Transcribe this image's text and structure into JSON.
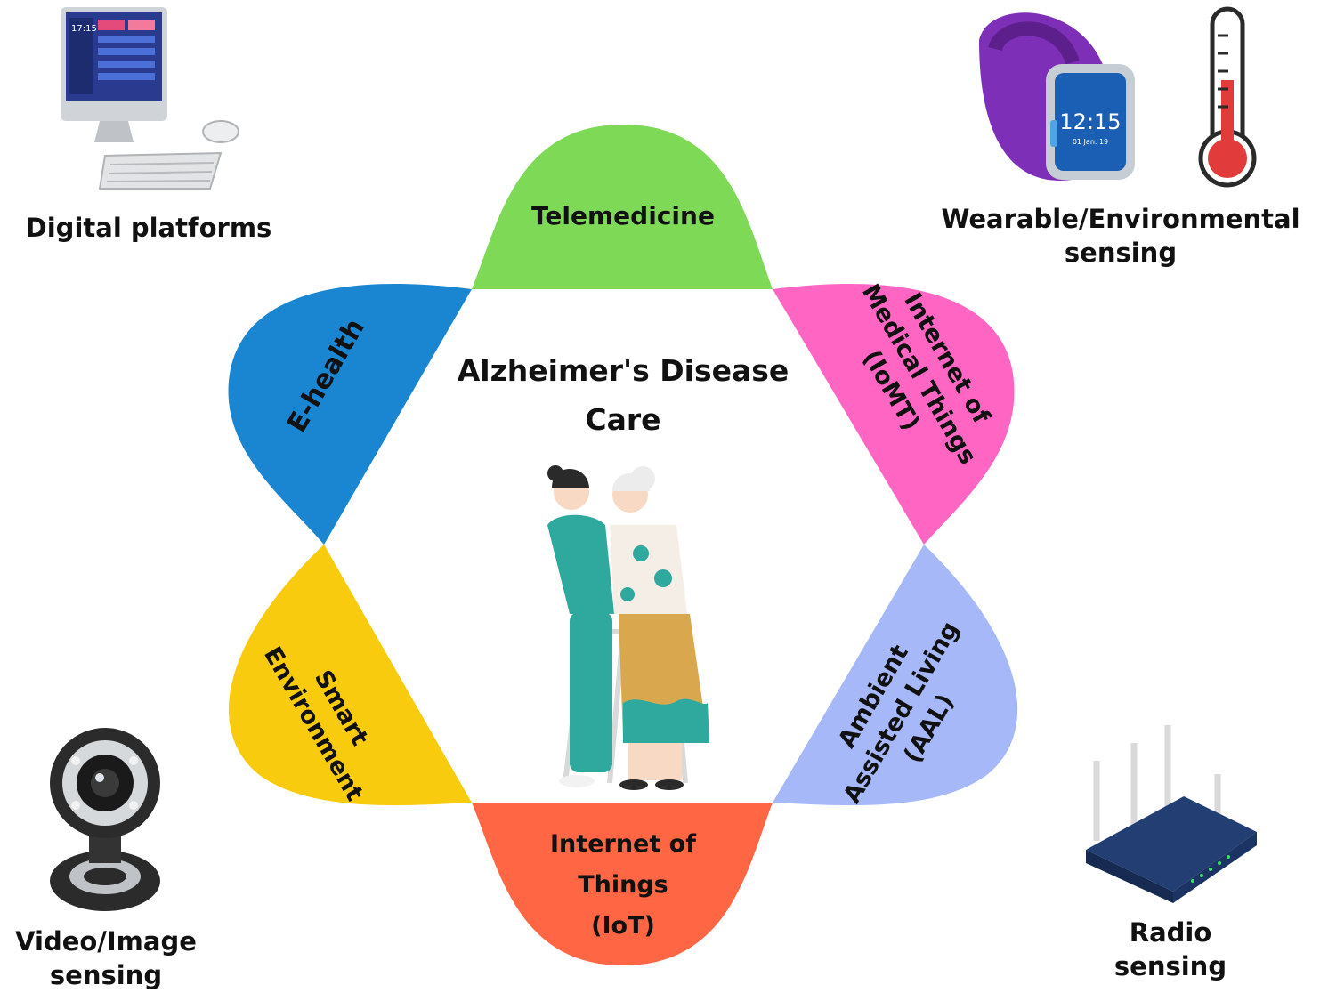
{
  "center": {
    "title_line1": "Alzheimer's Disease",
    "title_line2": "Care"
  },
  "petals": {
    "telemedicine": {
      "line1": "Telemedicine",
      "color": "#7ED957"
    },
    "ehealth": {
      "line1": "E-health",
      "color": "#1A85D0"
    },
    "iomt": {
      "line1": "Internet of",
      "line2": "Medical Things",
      "line3": "(IoMT)",
      "color": "#FF66C4"
    },
    "smart": {
      "line1": "Smart",
      "line2": "Environment",
      "color": "#F9CB0E"
    },
    "aal": {
      "line1": "Ambient",
      "line2": "Assisted Living",
      "line3": "(AAL)",
      "color": "#A6B8F8"
    },
    "iot": {
      "line1": "Internet of",
      "line2": "Things",
      "line3": "(IoT)",
      "color": "#FF6643"
    }
  },
  "corners": {
    "digital": {
      "line1": "Digital platforms"
    },
    "wearable": {
      "line1": "Wearable/Environmental",
      "line2": "sensing"
    },
    "video": {
      "line1": "Video/Image",
      "line2": "sensing"
    },
    "radio": {
      "line1": "Radio",
      "line2": "sensing"
    }
  },
  "watch": {
    "time": "12:15",
    "date": "01 Jan. 19"
  },
  "monitor": {
    "time": "17:15"
  }
}
